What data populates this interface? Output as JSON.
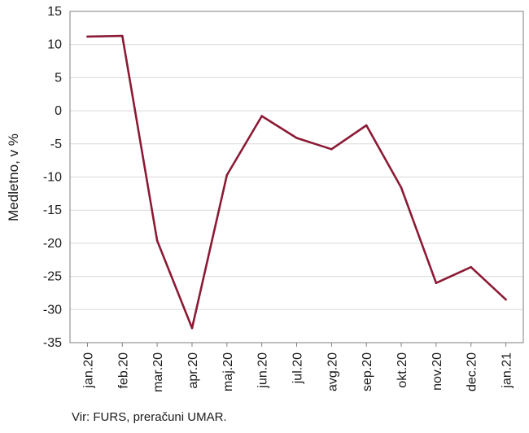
{
  "chart_data": {
    "type": "line",
    "title": "",
    "xlabel": "",
    "ylabel": "Medletno, v %",
    "categories": [
      "jan.20",
      "feb.20",
      "mar.20",
      "apr.20",
      "maj.20",
      "jun.20",
      "jul.20",
      "avg.20",
      "sep.20",
      "okt.20",
      "nov.20",
      "dec.20",
      "jan.21"
    ],
    "series": [
      {
        "values": [
          11.2,
          11.3,
          -19.6,
          -32.8,
          -9.7,
          -0.8,
          -4.1,
          -5.8,
          -2.2,
          -11.6,
          -26.0,
          -23.6,
          -28.5
        ]
      }
    ],
    "ylim": [
      -35,
      15
    ],
    "yticks": [
      15,
      10,
      5,
      0,
      -5,
      -10,
      -15,
      -20,
      -25,
      -30,
      -35
    ],
    "ytick_labels": [
      "15",
      "10",
      "5",
      "0",
      "-5",
      "-10",
      "-15",
      "-20",
      "-25",
      "-30",
      "-35"
    ],
    "grid": true,
    "legend": "none",
    "colors": {
      "line": "#8b1a35",
      "grid": "#d9d9d9",
      "axis": "#7f7f7f"
    }
  },
  "source": "Vir: FURS, preračuni UMAR."
}
